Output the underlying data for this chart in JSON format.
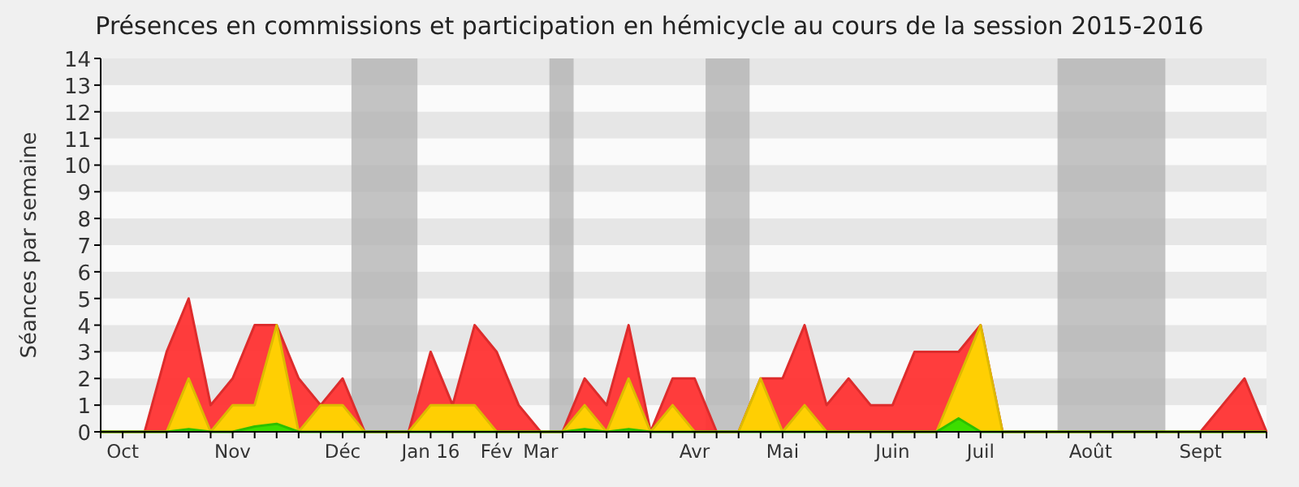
{
  "chart_data": {
    "type": "area",
    "title": "Présences en commissions et participation en hémicycle au cours de la session 2015-2016",
    "ylabel": "Séances par semaine",
    "categories": [
      null,
      "Oct",
      null,
      null,
      null,
      null,
      "Nov",
      null,
      null,
      null,
      null,
      "Déc",
      null,
      null,
      null,
      "Jan 16",
      null,
      null,
      "Fév",
      null,
      "Mar",
      null,
      null,
      null,
      null,
      null,
      null,
      "Avr",
      null,
      null,
      null,
      "Mai",
      null,
      null,
      null,
      null,
      "Juin",
      null,
      null,
      null,
      "Juil",
      null,
      null,
      null,
      null,
      "Août",
      null,
      null,
      null,
      null,
      "Sept",
      null,
      null,
      null
    ],
    "ylim": [
      0,
      14
    ],
    "yticks": [
      0,
      1,
      2,
      3,
      4,
      5,
      6,
      7,
      8,
      9,
      10,
      11,
      12,
      13,
      14
    ],
    "series": [
      {
        "color": "#ff3333",
        "values": [
          0,
          0,
          0,
          3,
          5,
          1,
          2,
          4,
          4,
          2,
          1,
          2,
          0,
          0,
          0,
          3,
          1,
          4,
          3,
          1,
          0,
          0,
          2,
          1,
          4,
          0,
          2,
          2,
          0,
          0,
          2,
          2,
          4,
          1,
          2,
          1,
          1,
          3,
          3,
          3,
          4,
          0,
          0,
          0,
          0,
          0,
          0,
          0,
          0,
          0,
          0,
          1,
          2,
          0
        ]
      },
      {
        "color": "#ffd700",
        "values": [
          0,
          0,
          0,
          0,
          2,
          0,
          1,
          1,
          4,
          0,
          1,
          1,
          0,
          0,
          0,
          1,
          1,
          1,
          0,
          0,
          0,
          0,
          1,
          0,
          2,
          0,
          1,
          0,
          0,
          0,
          2,
          0,
          1,
          0,
          0,
          0,
          0,
          0,
          0,
          2,
          4,
          0,
          0,
          0,
          0,
          0,
          0,
          0,
          0,
          0,
          0,
          0,
          0,
          0
        ]
      },
      {
        "color": "#33dd00",
        "values": [
          0,
          0,
          0,
          0,
          0.1,
          0,
          0,
          0.2,
          0.3,
          0,
          0,
          0,
          0,
          0,
          0,
          0,
          0,
          0,
          0,
          0,
          0,
          0,
          0.1,
          0,
          0.1,
          0,
          0,
          0,
          0,
          0,
          0,
          0,
          0,
          0,
          0,
          0,
          0,
          0,
          0,
          0.5,
          0,
          0,
          0,
          0,
          0,
          0,
          0,
          0,
          0,
          0,
          0,
          0,
          0,
          0
        ]
      }
    ]
  }
}
